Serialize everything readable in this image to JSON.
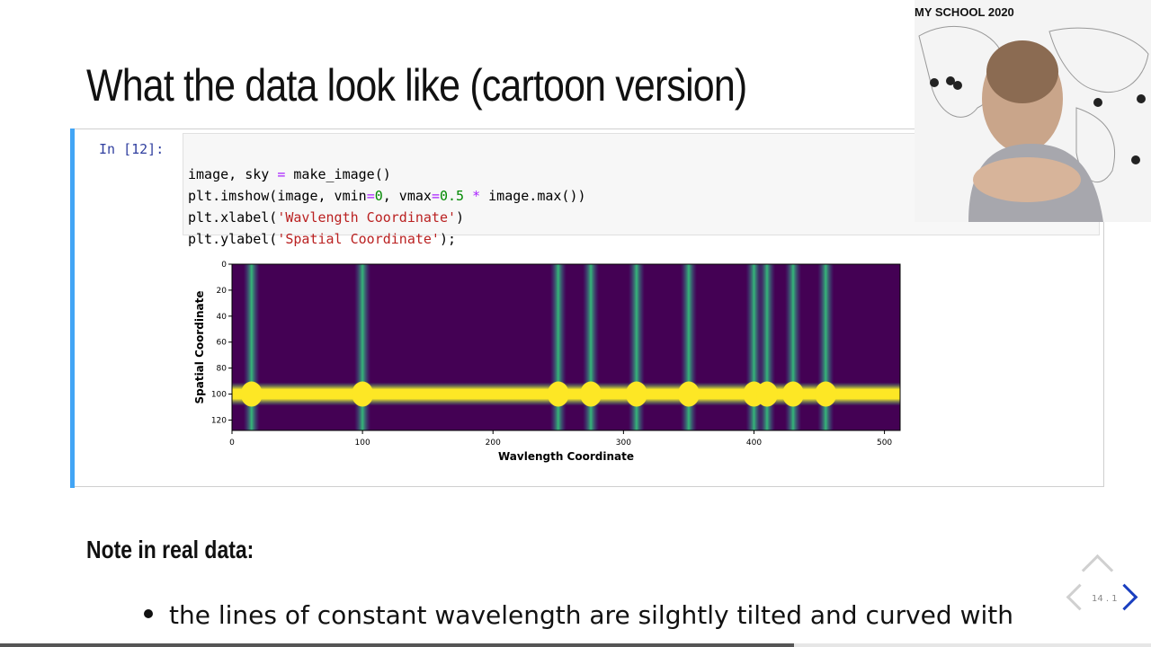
{
  "slide": {
    "title": "What the data look like (cartoon version)",
    "note_heading": "Note in real data:",
    "bullet": "the lines of constant wavelength are silghtly tilted and curved with",
    "slide_number": "14 . 1",
    "progress": 0.69
  },
  "cell": {
    "prompt": "In [12]:",
    "code_lines": [
      "image, sky = make_image()",
      "plt.imshow(image, vmin=0, vmax=0.5 * image.max())",
      "plt.xlabel('Wavlength Coordinate')",
      "plt.ylabel('Spatial Coordinate');"
    ]
  },
  "webcam": {
    "banner": "MY SCHOOL 2020"
  },
  "colors": {
    "cell_accent": "#42a5f5",
    "nav_active": "#1a3fc0",
    "viridis_low": "#440154",
    "viridis_high": "#fde725"
  },
  "chart_data": {
    "type": "heatmap",
    "xlabel": "Wavlength Coordinate",
    "ylabel": "Spatial Coordinate",
    "xlim": [
      0,
      512
    ],
    "ylim": [
      128,
      0
    ],
    "x_ticks": [
      0,
      100,
      200,
      300,
      400,
      500
    ],
    "y_ticks": [
      0,
      20,
      40,
      60,
      80,
      100,
      120
    ],
    "sky_lines_x": [
      15,
      100,
      250,
      275,
      310,
      350,
      400,
      410,
      430,
      455
    ],
    "trace_y": 100,
    "colormap": "viridis"
  }
}
